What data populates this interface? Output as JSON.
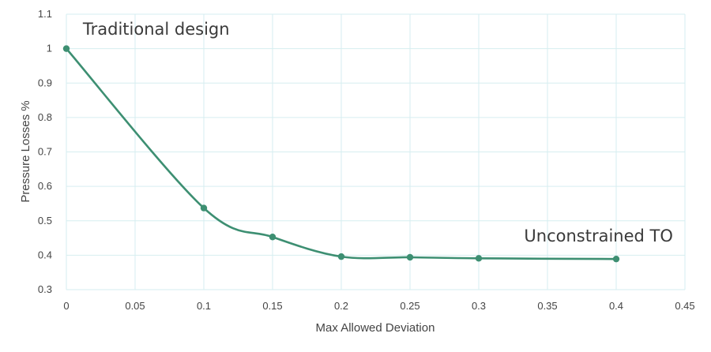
{
  "chart_data": {
    "type": "line",
    "title": "",
    "xlabel": "Max Allowed Deviation",
    "ylabel": "Pressure Losses %",
    "xlim": [
      0,
      0.45
    ],
    "ylim": [
      0.3,
      1.1
    ],
    "xticks": [
      "0",
      "0.05",
      "0.1",
      "0.15",
      "0.2",
      "0.25",
      "0.3",
      "0.35",
      "0.4",
      "0.45"
    ],
    "yticks": [
      "0.3",
      "0.4",
      "0.5",
      "0.6",
      "0.7",
      "0.8",
      "0.9",
      "1",
      "1.1"
    ],
    "grid": true,
    "series": [
      {
        "x": [
          0,
          0.1,
          0.15,
          0.2,
          0.25,
          0.3,
          0.4
        ],
        "y": [
          1.0,
          0.537,
          0.453,
          0.396,
          0.394,
          0.391,
          0.389
        ]
      }
    ],
    "annotations": [
      {
        "text": "Traditional design",
        "x": 0.012,
        "y": 1.04
      },
      {
        "text": "Unconstrained TO",
        "x": 0.333,
        "y": 0.44
      }
    ],
    "colors": {
      "line": "#3d8f72",
      "grid": "#d6eef0",
      "text": "#444444"
    }
  }
}
